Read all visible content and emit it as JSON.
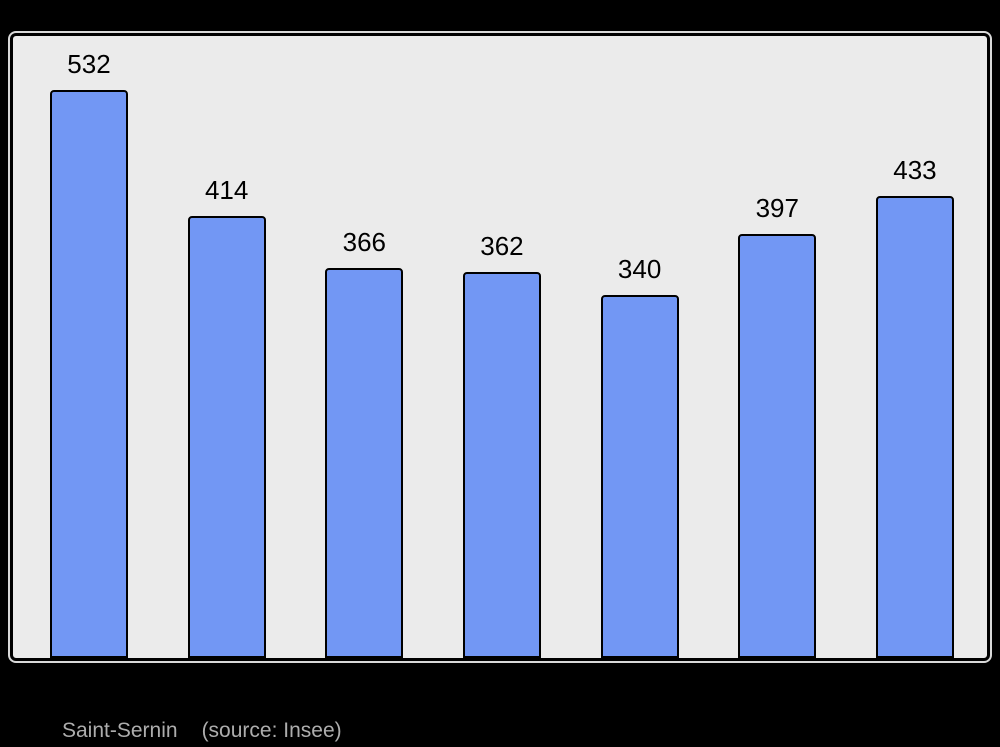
{
  "page": {
    "background_color": "#000000"
  },
  "caption": {
    "title": "Saint-Sernin",
    "source_note": "(source: Insee)",
    "text_color": "#adadad"
  },
  "chart_data": {
    "type": "bar",
    "title": "Saint-Sernin",
    "source_note": "(source: Insee)",
    "values": [
      532,
      414,
      366,
      362,
      340,
      397,
      433
    ],
    "bar_labels": [
      "532",
      "414",
      "366",
      "362",
      "340",
      "397",
      "433"
    ],
    "xlabel": "",
    "ylabel": "",
    "ylim": [
      0,
      583
    ],
    "grid": false,
    "legend": false,
    "data_labels_position": "above-bar",
    "colors": {
      "bar_fill": "#7297f4",
      "bar_border": "#000000",
      "plot_background": "#ebebeb",
      "plot_border": "#000000",
      "plot_outer_glow": "rgba(255,255,255,0.85)",
      "label_text": "#000000"
    }
  }
}
